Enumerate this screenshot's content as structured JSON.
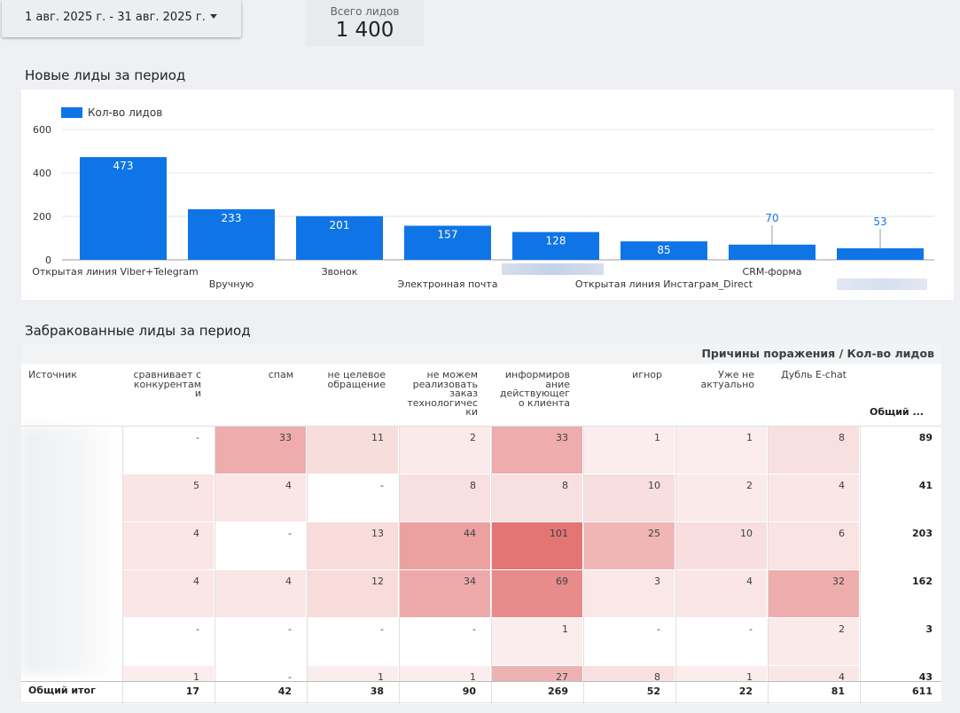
{
  "filters": {
    "date_range": "1 авг. 2025 г. - 31 авг. 2025 г."
  },
  "kpi": {
    "label": "Всего лидов",
    "value": "1 400"
  },
  "sections": {
    "new_leads_title": "Новые лиды за период",
    "rejected_leads_title": "Забракованные лиды за период"
  },
  "chart_data": {
    "type": "bar",
    "title": "Новые лиды за период",
    "legend": "Кол-во лидов",
    "series_name": "Кол-во лидов",
    "color": "#0f75e6",
    "ylim": [
      0,
      600
    ],
    "yticks": [
      "0",
      "200",
      "400",
      "600"
    ],
    "categories": [
      "Открытая линия Viber+Telegram",
      "Вручную",
      "Звонок",
      "Электронная почта",
      "",
      "Открытая линия Инстаграм_Direct",
      "CRM-форма",
      ""
    ],
    "values": [
      473,
      233,
      201,
      157,
      128,
      85,
      70,
      53
    ]
  },
  "table": {
    "title": "Причины поражения / Кол-во лидов",
    "source_header": "Источник",
    "total_header": "Общий ...",
    "columns": [
      "сравнивает с конкурентами",
      "спам",
      "не целевое обращение",
      "не можем реализовать заказ технологически",
      "информирование действующего клиента",
      "игнор",
      "Уже не актуально",
      "Дубль E-chat"
    ],
    "column_lines": [
      [
        "сравнивает с",
        "конкурентам",
        "и"
      ],
      [
        "спам"
      ],
      [
        "не целевое",
        "обращение"
      ],
      [
        "не можем",
        "реализовать",
        "заказ",
        "технологичес",
        "ки"
      ],
      [
        "информиров",
        "ание",
        "действующег",
        "о клиента"
      ],
      [
        "игнор"
      ],
      [
        "Уже не",
        "актуально"
      ],
      [
        "Дубль E-chat"
      ]
    ],
    "rows": [
      {
        "cells": [
          "-",
          "33",
          "11",
          "2",
          "33",
          "1",
          "1",
          "8"
        ],
        "total": "89"
      },
      {
        "cells": [
          "5",
          "4",
          "-",
          "8",
          "8",
          "10",
          "2",
          "4"
        ],
        "total": "41"
      },
      {
        "cells": [
          "4",
          "-",
          "13",
          "44",
          "101",
          "25",
          "10",
          "6"
        ],
        "total": "203"
      },
      {
        "cells": [
          "4",
          "4",
          "12",
          "34",
          "69",
          "3",
          "4",
          "32"
        ],
        "total": "162"
      },
      {
        "cells": [
          "-",
          "-",
          "-",
          "-",
          "1",
          "-",
          "-",
          "2"
        ],
        "total": "3"
      },
      {
        "cells": [
          "1",
          "-",
          "1",
          "1",
          "27",
          "8",
          "1",
          "4"
        ],
        "total": "43"
      }
    ],
    "grand_total": {
      "label": "Общий итог",
      "cells": [
        "17",
        "42",
        "38",
        "90",
        "269",
        "52",
        "22",
        "81"
      ],
      "total": "611"
    },
    "heat_color": "#e06666",
    "heat_max": 101
  }
}
